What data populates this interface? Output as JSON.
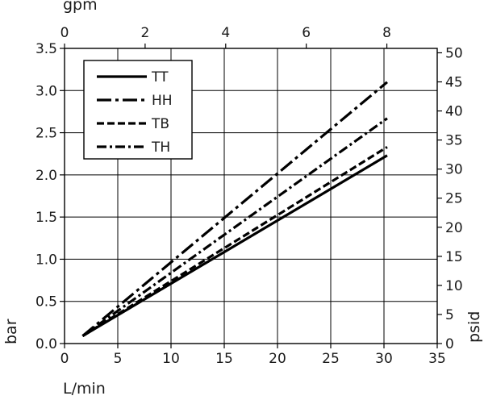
{
  "chart_data": {
    "type": "line",
    "title": "",
    "xlabel": "L/min",
    "ylabel": "bar",
    "x2label": "gpm",
    "y2label": "psid",
    "xlim": [
      0,
      35
    ],
    "ylim": [
      0,
      3.5
    ],
    "x2lim": [
      0,
      9.25
    ],
    "y2lim": [
      0,
      50.76
    ],
    "xticks": [
      0,
      5,
      10,
      15,
      20,
      25,
      30,
      35
    ],
    "xtick_labels": [
      "0",
      "5",
      "10",
      "15",
      "20",
      "25",
      "30",
      "35"
    ],
    "yticks": [
      0,
      0.5,
      1.0,
      1.5,
      2.0,
      2.5,
      3.0,
      3.5
    ],
    "ytick_labels": [
      "0.0",
      "0.5",
      "1.0",
      "1.5",
      "2.0",
      "2.5",
      "3.0",
      "3.5"
    ],
    "x2ticks": [
      0,
      2,
      4,
      6,
      8
    ],
    "x2tick_labels": [
      "0",
      "2",
      "4",
      "6",
      "8"
    ],
    "y2ticks": [
      0,
      5,
      10,
      15,
      20,
      25,
      30,
      35,
      40,
      45,
      50
    ],
    "y2tick_labels": [
      "0",
      "5",
      "10",
      "15",
      "20",
      "25",
      "30",
      "35",
      "40",
      "45",
      "50"
    ],
    "grid": true,
    "legend_position": "top-left",
    "series": [
      {
        "name": "TT",
        "style": "solid",
        "x": [
          1.7,
          30.3
        ],
        "y": [
          0.09,
          2.23
        ]
      },
      {
        "name": "HH",
        "style": "long-dash-dot",
        "x": [
          1.7,
          30.3
        ],
        "y": [
          0.09,
          3.1
        ]
      },
      {
        "name": "TB",
        "style": "dashed",
        "x": [
          1.7,
          30.3
        ],
        "y": [
          0.09,
          2.33
        ]
      },
      {
        "name": "TH",
        "style": "dash-dot",
        "x": [
          1.7,
          30.3
        ],
        "y": [
          0.09,
          2.67
        ]
      }
    ],
    "colors": {
      "line": "#000000",
      "grid": "#000000",
      "text": "#1a1a1a"
    }
  }
}
